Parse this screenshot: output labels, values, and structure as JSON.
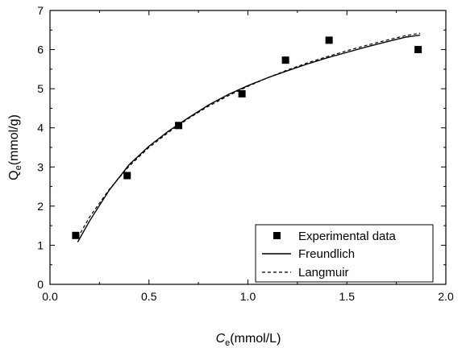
{
  "chart_data": {
    "type": "scatter",
    "xlabel": "Ce(mmol/L)",
    "xlabel_main": "C",
    "xlabel_sub": "e",
    "xlabel_unit": "(mmol/L)",
    "ylabel": "Qe(mmol/g)",
    "ylabel_main": "Q",
    "ylabel_sub": "e",
    "ylabel_unit": "(mmol/g)",
    "xlim": [
      0.0,
      2.0
    ],
    "ylim": [
      0,
      7
    ],
    "x_ticks": [
      "0.0",
      "0.5",
      "1.0",
      "1.5",
      "2.0"
    ],
    "y_ticks": [
      "0",
      "1",
      "2",
      "3",
      "4",
      "5",
      "6",
      "7"
    ],
    "grid": false,
    "legend_position": "bottom-right",
    "series": [
      {
        "name": "Experimental data",
        "marker": "square",
        "x": [
          0.13,
          0.39,
          0.65,
          0.97,
          1.19,
          1.41,
          1.86
        ],
        "y": [
          1.25,
          2.78,
          4.06,
          4.87,
          5.73,
          6.24,
          6.0
        ]
      },
      {
        "name": "Freundlich",
        "line": "solid",
        "x": [
          0.14,
          0.2,
          0.3,
          0.4,
          0.5,
          0.6,
          0.7,
          0.8,
          0.9,
          1.0,
          1.1,
          1.2,
          1.3,
          1.4,
          1.5,
          1.6,
          1.7,
          1.8,
          1.87
        ],
        "y": [
          1.08,
          1.62,
          2.41,
          3.06,
          3.53,
          3.92,
          4.26,
          4.58,
          4.85,
          5.08,
          5.28,
          5.46,
          5.63,
          5.79,
          5.93,
          6.07,
          6.2,
          6.32,
          6.37
        ]
      },
      {
        "name": "Langmuir",
        "line": "dashed",
        "x": [
          0.14,
          0.2,
          0.3,
          0.4,
          0.5,
          0.6,
          0.7,
          0.8,
          0.9,
          1.0,
          1.1,
          1.2,
          1.3,
          1.4,
          1.5,
          1.6,
          1.7,
          1.8,
          1.87
        ],
        "y": [
          1.19,
          1.72,
          2.43,
          3.02,
          3.5,
          3.89,
          4.24,
          4.55,
          4.82,
          5.06,
          5.28,
          5.48,
          5.66,
          5.82,
          5.97,
          6.11,
          6.24,
          6.36,
          6.42
        ]
      }
    ]
  }
}
